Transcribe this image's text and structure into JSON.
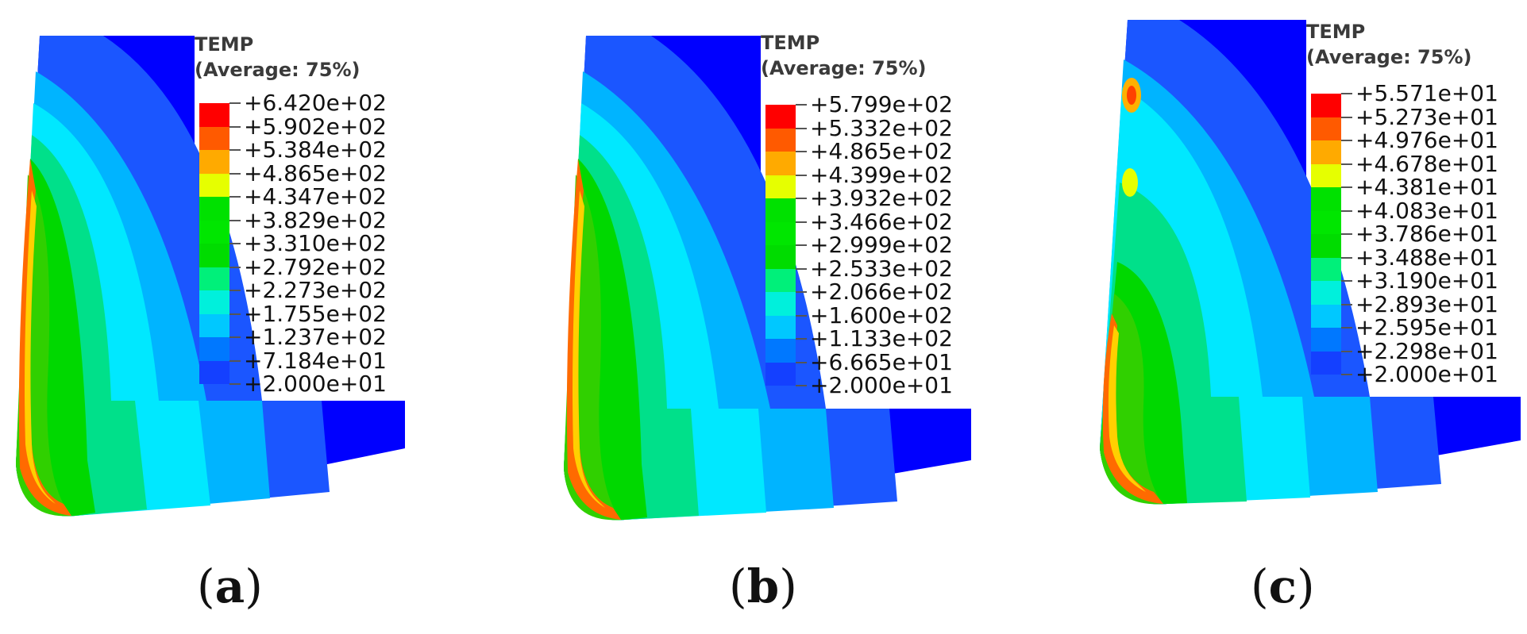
{
  "panels": [
    {
      "id": "a",
      "legend_title": "TEMP",
      "legend_subtitle": "(Average: 75%)",
      "legend_values": [
        "+6.420e+02",
        "+5.902e+02",
        "+5.384e+02",
        "+4.865e+02",
        "+4.347e+02",
        "+3.829e+02",
        "+3.310e+02",
        "+2.792e+02",
        "+2.273e+02",
        "+1.755e+02",
        "+1.237e+02",
        "+7.184e+01",
        "+2.000e+01"
      ],
      "caption_open": "(",
      "caption_letter": "a",
      "caption_close": ")"
    },
    {
      "id": "b",
      "legend_title": "TEMP",
      "legend_subtitle": "(Average: 75%)",
      "legend_values": [
        "+5.799e+02",
        "+5.332e+02",
        "+4.865e+02",
        "+4.399e+02",
        "+3.932e+02",
        "+3.466e+02",
        "+2.999e+02",
        "+2.533e+02",
        "+2.066e+02",
        "+1.600e+02",
        "+1.133e+02",
        "+6.665e+01",
        "+2.000e+01"
      ],
      "caption_open": "(",
      "caption_letter": "b",
      "caption_close": ")"
    },
    {
      "id": "c",
      "legend_title": "TEMP",
      "legend_subtitle": "(Average: 75%)",
      "legend_values": [
        "+5.571e+01",
        "+5.273e+01",
        "+4.976e+01",
        "+4.678e+01",
        "+4.381e+01",
        "+4.083e+01",
        "+3.786e+01",
        "+3.488e+01",
        "+3.190e+01",
        "+2.893e+01",
        "+2.595e+01",
        "+2.298e+01",
        "+2.000e+01"
      ],
      "caption_open": "(",
      "caption_letter": "c",
      "caption_close": ")"
    }
  ],
  "colormap": [
    "#ff0000",
    "#ff5a00",
    "#ffaa00",
    "#e6ff00",
    "#00e100",
    "#00e600",
    "#00dc00",
    "#00f07a",
    "#00f0dc",
    "#00c8ff",
    "#0078ff",
    "#1440ff",
    "#0000ff"
  ]
}
